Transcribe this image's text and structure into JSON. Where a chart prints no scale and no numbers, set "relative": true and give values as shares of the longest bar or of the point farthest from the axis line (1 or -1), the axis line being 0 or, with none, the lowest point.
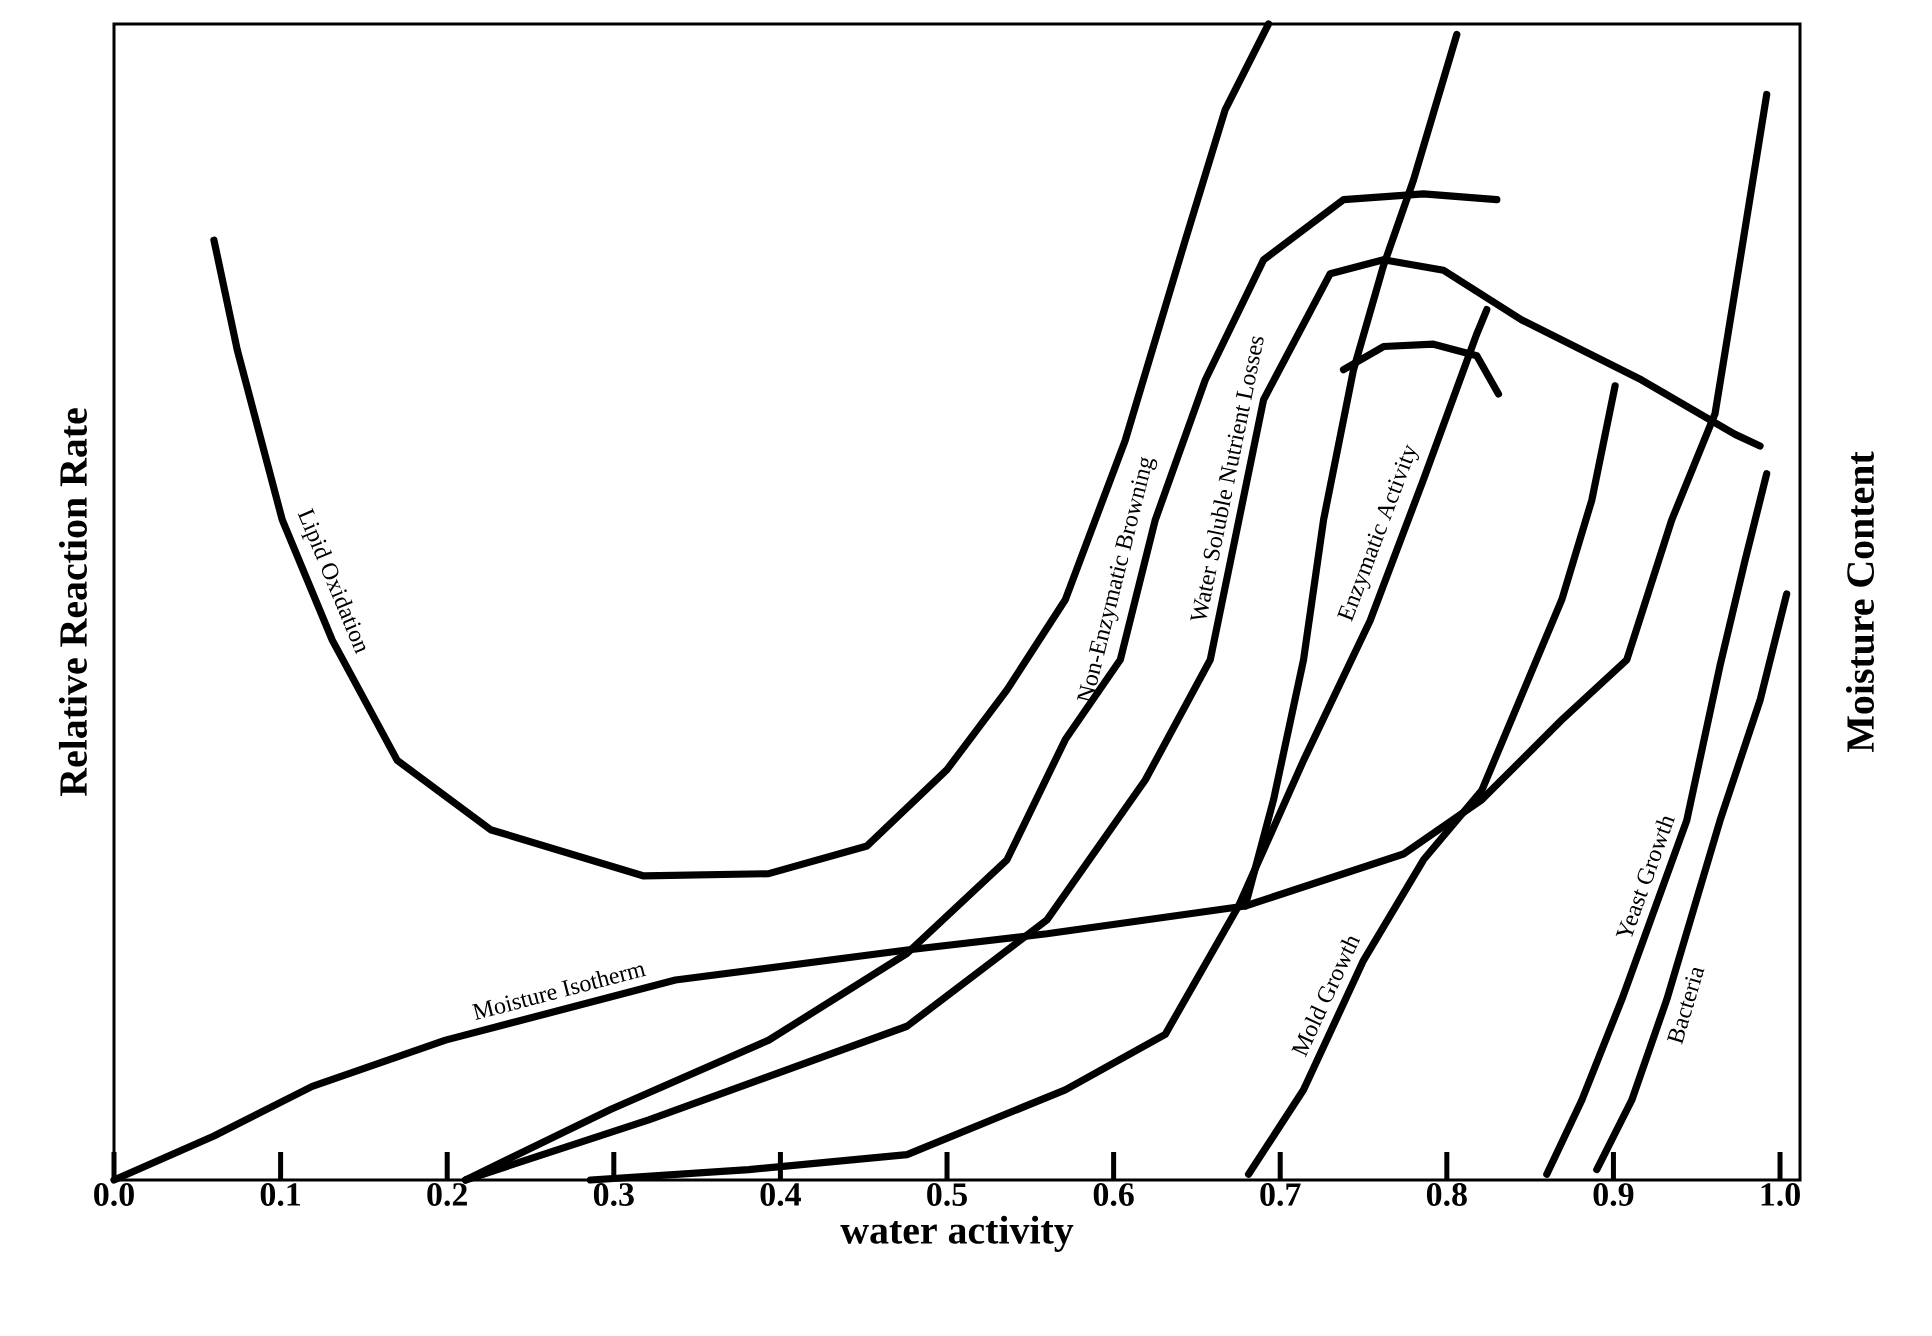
{
  "chart_data": {
    "type": "line",
    "relative": true,
    "xlabel": "water activity",
    "ylabel": "Relative Reaction Rate",
    "y2label": "Moisture Content",
    "xlim": [
      0,
      1.012
    ],
    "xticks": [
      {
        "value": 0,
        "label": "0.0"
      },
      {
        "value": 0.1,
        "label": "0.1"
      },
      {
        "value": 0.2,
        "label": "0.2"
      },
      {
        "value": 0.3,
        "label": "0.3"
      },
      {
        "value": 0.4,
        "label": "0.4"
      },
      {
        "value": 0.5,
        "label": "0.5"
      },
      {
        "value": 0.6,
        "label": "0.6"
      },
      {
        "value": 0.7,
        "label": "0.7"
      },
      {
        "value": 0.8,
        "label": "0.8"
      },
      {
        "value": 0.9,
        "label": "0.9"
      },
      {
        "value": 1.0,
        "label": "1.0"
      }
    ],
    "series": [
      {
        "name": "Lipid Oxidation",
        "color": "#000000",
        "x": [
          0.06,
          0.074,
          0.101,
          0.131,
          0.17,
          0.226,
          0.318,
          0.393,
          0.452,
          0.5,
          0.536,
          0.571,
          0.607,
          0.643,
          0.667,
          0.693
        ],
        "values": [
          0.813,
          0.718,
          0.571,
          0.467,
          0.363,
          0.303,
          0.263,
          0.265,
          0.289,
          0.355,
          0.424,
          0.502,
          0.64,
          0.813,
          0.926,
          1
        ]
      },
      {
        "name": "Non-Enzymatic Browning",
        "color": "#000000",
        "x": [
          0.211,
          0.298,
          0.393,
          0.476,
          0.536,
          0.571,
          0.604,
          0.625,
          0.655,
          0.69,
          0.738,
          0.786,
          0.83
        ],
        "values": [
          0,
          0.061,
          0.121,
          0.196,
          0.277,
          0.381,
          0.45,
          0.571,
          0.692,
          0.796,
          0.848,
          0.853,
          0.848
        ]
      },
      {
        "name": "Water Soluble Nutrient Losses",
        "color": "#000000",
        "x": [
          0.211,
          0.321,
          0.476,
          0.56,
          0.619,
          0.658,
          0.69,
          0.73,
          0.762,
          0.798,
          0.845,
          0.917,
          0.973,
          0.988
        ],
        "values": [
          0,
          0.052,
          0.133,
          0.225,
          0.346,
          0.45,
          0.675,
          0.784,
          0.796,
          0.787,
          0.744,
          0.692,
          0.645,
          0.635
        ]
      },
      {
        "name": "Enzymatic Activity",
        "color": "#000000",
        "x": [
          0.286,
          0.381,
          0.476,
          0.571,
          0.631,
          0.675,
          0.714,
          0.754,
          0.786,
          0.818,
          0.824
        ],
        "values": [
          0,
          0.009,
          0.022,
          0.078,
          0.126,
          0.237,
          0.363,
          0.484,
          0.606,
          0.732,
          0.753
        ]
      },
      {
        "color": "#000000",
        "x": [
          0.806,
          0.78,
          0.762,
          0.744,
          0.726,
          0.714,
          0.696,
          0.679
        ],
        "values": [
          0.991,
          0.865,
          0.791,
          0.701,
          0.571,
          0.45,
          0.329,
          0.237
        ]
      },
      {
        "color": "#000000",
        "x": [
          0.738,
          0.762,
          0.792,
          0.818,
          0.831
        ],
        "values": [
          0.701,
          0.721,
          0.723,
          0.713,
          0.68
        ]
      },
      {
        "name": "Mold Growth",
        "color": "#000000",
        "x": [
          0.681,
          0.714,
          0.75,
          0.786,
          0.821,
          0.869,
          0.887,
          0.901
        ],
        "values": [
          0.005,
          0.078,
          0.19,
          0.277,
          0.337,
          0.502,
          0.588,
          0.687
        ]
      },
      {
        "name": "Yeast Growth",
        "color": "#000000",
        "x": [
          0.86,
          0.881,
          0.905,
          0.944,
          0.964,
          0.979,
          0.992
        ],
        "values": [
          0.005,
          0.069,
          0.156,
          0.311,
          0.445,
          0.536,
          0.611
        ]
      },
      {
        "name": "Bacteria",
        "color": "#000000",
        "x": [
          0.89,
          0.911,
          0.932,
          0.964,
          0.988,
          1.004
        ],
        "values": [
          0.009,
          0.069,
          0.156,
          0.311,
          0.415,
          0.507
        ]
      },
      {
        "name": "Moisture Isotherm",
        "color": "#000000",
        "x": [
          0,
          0.06,
          0.119,
          0.199,
          0.337,
          0.476,
          0.56,
          0.679,
          0.774,
          0.821,
          0.869,
          0.908,
          0.935,
          0.961,
          0.976,
          0.992
        ],
        "values": [
          0,
          0.038,
          0.081,
          0.121,
          0.173,
          0.199,
          0.213,
          0.237,
          0.282,
          0.329,
          0.398,
          0.45,
          0.571,
          0.663,
          0.796,
          0.939
        ]
      }
    ]
  }
}
